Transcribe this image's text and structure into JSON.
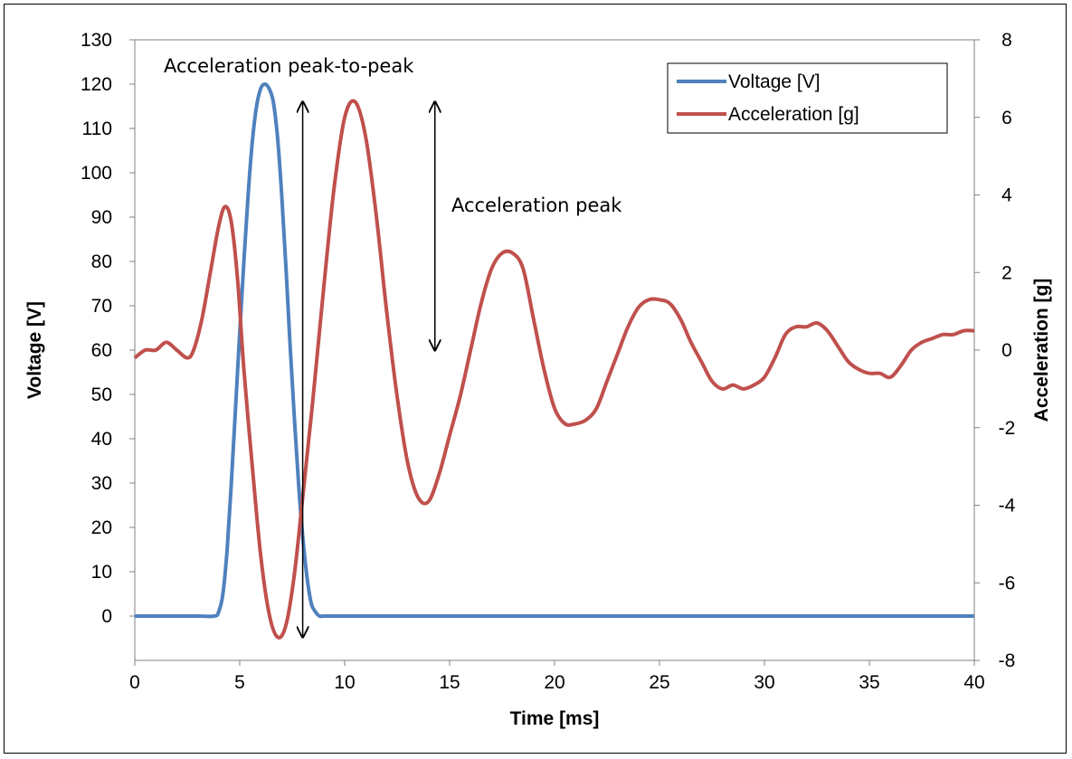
{
  "chart_data": {
    "type": "line",
    "title": "",
    "xlabel": "Time [ms]",
    "ylabel": "Voltage [V]",
    "y2label": "Acceleration [g]",
    "xlim": [
      0,
      40
    ],
    "ylim": [
      -10,
      130
    ],
    "y2lim": [
      -8,
      8
    ],
    "xticks": [
      0,
      5,
      10,
      15,
      20,
      25,
      30,
      35,
      40
    ],
    "yticks": [
      0,
      10,
      20,
      30,
      40,
      50,
      60,
      70,
      80,
      90,
      100,
      110,
      120,
      130
    ],
    "y2ticks": [
      -8,
      -6,
      -4,
      -2,
      0,
      2,
      4,
      6,
      8
    ],
    "grid": false,
    "legend_position": "top-right",
    "series": [
      {
        "name": "Voltage [V]",
        "axis": "left",
        "color": "#4F81BD",
        "x": [
          0,
          1,
          2,
          3,
          3.8,
          4.0,
          4.2,
          4.4,
          4.6,
          4.8,
          5.0,
          5.2,
          5.4,
          5.6,
          5.8,
          6.0,
          6.2,
          6.4,
          6.6,
          6.8,
          7.0,
          7.2,
          7.4,
          7.6,
          7.8,
          8.0,
          8.2,
          8.4,
          8.6,
          8.8,
          9.0,
          10,
          15,
          20,
          25,
          30,
          35,
          40
        ],
        "y": [
          0,
          0,
          0,
          0,
          0,
          1,
          5,
          15,
          30,
          47,
          64,
          80,
          95,
          107,
          115,
          119,
          120,
          119,
          116,
          108,
          95,
          79,
          61,
          45,
          30,
          18,
          9,
          3,
          1,
          0,
          0,
          0,
          0,
          0,
          0,
          0,
          0,
          0
        ]
      },
      {
        "name": "Acceleration [g]",
        "axis": "right",
        "color": "#C0504D",
        "x": [
          0,
          0.5,
          1.0,
          1.5,
          2.0,
          2.5,
          2.8,
          3.2,
          3.6,
          4.0,
          4.3,
          4.6,
          4.9,
          5.2,
          5.6,
          6.0,
          6.4,
          6.8,
          7.2,
          7.6,
          8.0,
          8.5,
          9.0,
          9.5,
          10.0,
          10.5,
          11.0,
          11.5,
          12.0,
          12.5,
          13.0,
          13.5,
          14.0,
          14.5,
          15.0,
          15.5,
          16.0,
          16.5,
          17.0,
          17.5,
          18.0,
          18.5,
          19.0,
          19.5,
          20.0,
          20.5,
          21.0,
          21.5,
          22.0,
          22.5,
          23.0,
          23.5,
          24.0,
          24.5,
          25.0,
          25.5,
          26.0,
          26.5,
          27.0,
          27.5,
          28.0,
          28.5,
          29.0,
          29.5,
          30.0,
          30.5,
          31.0,
          31.5,
          32.0,
          32.5,
          33.0,
          33.5,
          34.0,
          34.5,
          35.0,
          35.5,
          36.0,
          36.5,
          37.0,
          37.5,
          38.0,
          38.5,
          39.0,
          39.5,
          40.0
        ],
        "y": [
          -0.2,
          0.0,
          0.0,
          0.2,
          0.0,
          -0.2,
          0.0,
          0.8,
          2.0,
          3.2,
          3.7,
          3.3,
          1.8,
          -0.5,
          -3.0,
          -5.3,
          -6.8,
          -7.4,
          -7.1,
          -5.8,
          -3.8,
          -1.2,
          1.6,
          4.2,
          6.0,
          6.4,
          5.5,
          3.5,
          1.0,
          -1.2,
          -2.9,
          -3.8,
          -3.9,
          -3.2,
          -2.2,
          -1.2,
          0.0,
          1.2,
          2.1,
          2.5,
          2.5,
          2.1,
          0.8,
          -0.5,
          -1.5,
          -1.9,
          -1.9,
          -1.8,
          -1.5,
          -0.8,
          -0.1,
          0.6,
          1.1,
          1.3,
          1.3,
          1.2,
          0.8,
          0.2,
          -0.3,
          -0.8,
          -1.0,
          -0.9,
          -1.0,
          -0.9,
          -0.7,
          -0.2,
          0.4,
          0.6,
          0.6,
          0.7,
          0.5,
          0.1,
          -0.3,
          -0.5,
          -0.6,
          -0.6,
          -0.7,
          -0.4,
          0.0,
          0.2,
          0.3,
          0.4,
          0.4,
          0.5,
          0.5
        ]
      }
    ],
    "annotations": [
      {
        "text": "Acceleration peak-to-peak",
        "arrow_x": 8.0,
        "arrow_y_top": 6.4,
        "arrow_y_bottom": -7.4
      },
      {
        "text": "Acceleration peak",
        "arrow_x": 14.3,
        "arrow_y_top": 6.4,
        "arrow_y_bottom": 0.0
      }
    ]
  }
}
